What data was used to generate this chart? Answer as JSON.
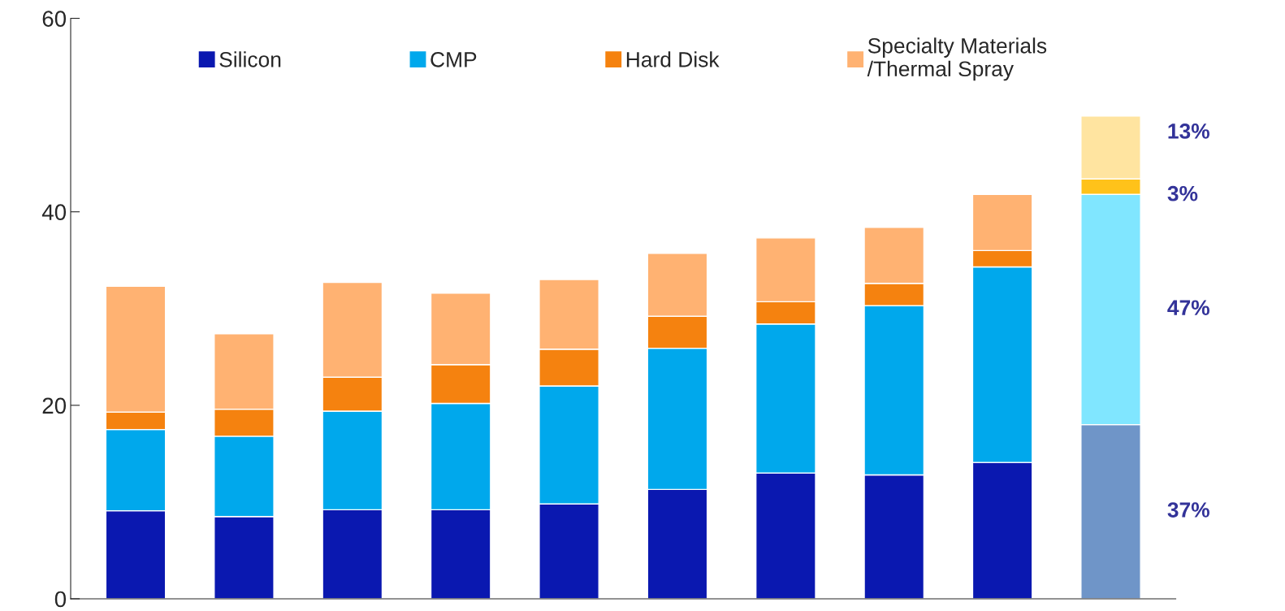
{
  "chart_data": {
    "type": "bar",
    "stacked": true,
    "categories": [
      null,
      null,
      null,
      null,
      null,
      null,
      null,
      null,
      null,
      null
    ],
    "series": [
      {
        "name": "Silicon",
        "color": "#0a18b0",
        "colors": [
          "#0a18b0",
          "#0a18b0",
          "#0a18b0",
          "#0a18b0",
          "#0a18b0",
          "#0a18b0",
          "#0a18b0",
          "#0a18b0",
          "#0a18b0",
          "#6f95c8"
        ],
        "values": [
          9.1,
          8.5,
          9.2,
          9.2,
          9.8,
          11.3,
          13.0,
          12.8,
          14.1,
          18.0
        ]
      },
      {
        "name": "CMP",
        "color": "#00a8ec",
        "colors": [
          "#00a8ec",
          "#00a8ec",
          "#00a8ec",
          "#00a8ec",
          "#00a8ec",
          "#00a8ec",
          "#00a8ec",
          "#00a8ec",
          "#00a8ec",
          "#80e6ff"
        ],
        "values": [
          8.4,
          8.3,
          10.2,
          11.0,
          12.2,
          14.6,
          15.4,
          17.5,
          20.2,
          23.8
        ]
      },
      {
        "name": "Hard Disk",
        "color": "#f5820f",
        "colors": [
          "#f5820f",
          "#f5820f",
          "#f5820f",
          "#f5820f",
          "#f5820f",
          "#f5820f",
          "#f5820f",
          "#f5820f",
          "#f5820f",
          "#ffc21a"
        ],
        "values": [
          1.8,
          2.8,
          3.5,
          4.0,
          3.8,
          3.3,
          2.3,
          2.3,
          1.7,
          1.6
        ]
      },
      {
        "name": "Specialty Materials\n/Thermal Spray",
        "color": "#ffb272",
        "colors": [
          "#ffb272",
          "#ffb272",
          "#ffb272",
          "#ffb272",
          "#ffb272",
          "#ffb272",
          "#ffb272",
          "#ffb272",
          "#ffb272",
          "#ffe4a0"
        ],
        "values": [
          13.0,
          7.8,
          9.8,
          7.4,
          7.2,
          6.5,
          6.6,
          5.8,
          5.8,
          6.5
        ]
      }
    ],
    "ylim": [
      0,
      60
    ],
    "yticks": [
      0,
      20,
      40,
      60
    ],
    "tick_labels": "y",
    "legend": "top",
    "grid": false,
    "annotations": [
      "37%",
      "47%",
      "3%",
      "13%"
    ]
  }
}
